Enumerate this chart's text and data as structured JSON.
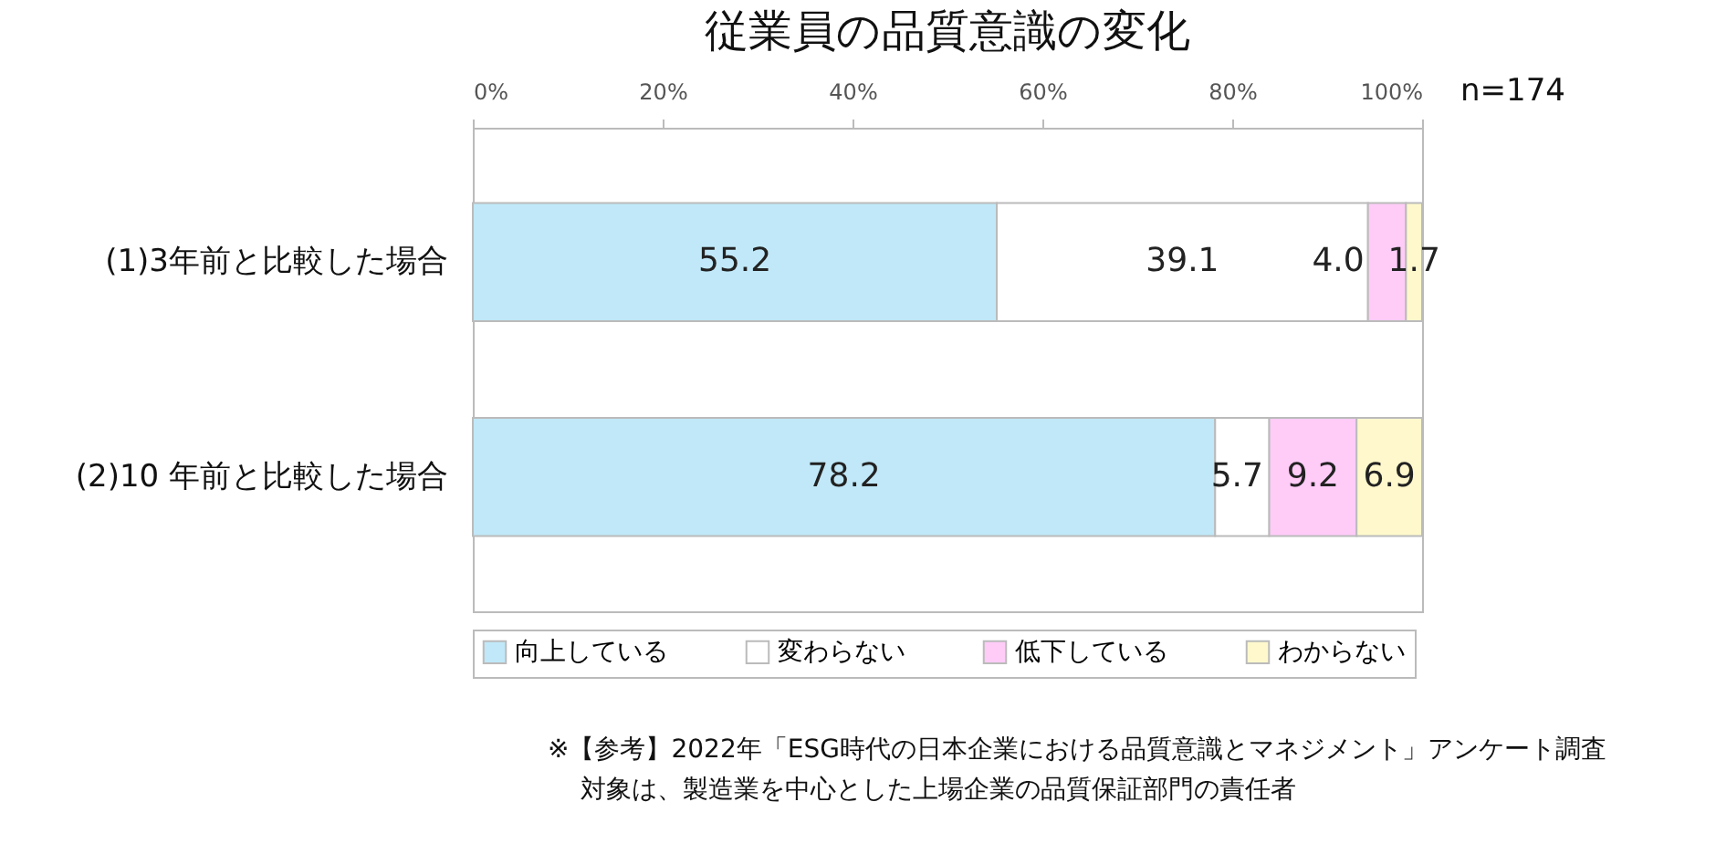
{
  "chart_data": {
    "type": "bar",
    "orientation": "horizontal",
    "stacked": true,
    "title": "従業員の品質意識の変化",
    "categories": [
      "(1)3年前と比較した場合",
      "(2)10 年前と比較した場合"
    ],
    "series": [
      {
        "name": "向上している",
        "color": "#c0e8f8",
        "values": [
          55.2,
          78.2
        ],
        "value_labels": [
          "55.2",
          "78.2"
        ]
      },
      {
        "name": "変わらない",
        "color": "#ffffff",
        "values": [
          39.1,
          5.7
        ],
        "value_labels": [
          "39.1",
          "5.7"
        ]
      },
      {
        "name": "低下している",
        "color": "#ffccf8",
        "values": [
          4.0,
          9.2
        ],
        "value_labels": [
          "4.0",
          "9.2"
        ]
      },
      {
        "name": "わからない",
        "color": "#fff8cc",
        "values": [
          1.7,
          6.9
        ],
        "value_labels": [
          "1.7",
          "6.9"
        ]
      }
    ],
    "xlim": [
      0,
      100
    ],
    "xticks": [
      {
        "value": 0,
        "label": "0%"
      },
      {
        "value": 20,
        "label": "20%"
      },
      {
        "value": 40,
        "label": "40%"
      },
      {
        "value": 60,
        "label": "60%"
      },
      {
        "value": 80,
        "label": "80%"
      },
      {
        "value": 100,
        "label": "100%"
      }
    ],
    "legend": "bottom",
    "grid": false,
    "annotations": [
      "n=174",
      "※【参考】2022年「ESG時代の日本企業における品質意識とマネジメント」アンケート調査",
      "対象は、製造業を中心とした上場企業の品質保証部門の責任者"
    ]
  }
}
